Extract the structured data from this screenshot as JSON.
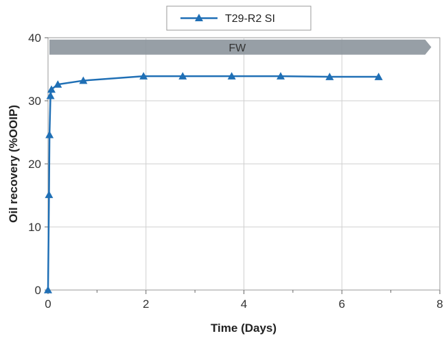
{
  "chart_data": {
    "type": "line",
    "xlabel": "Time (Days)",
    "ylabel": "Oil recovery (%OOIP)",
    "xlim": [
      0,
      8
    ],
    "ylim": [
      0,
      40
    ],
    "xticks": [
      "0",
      "2",
      "4",
      "6",
      "8"
    ],
    "yticks": [
      "0",
      "10",
      "20",
      "30",
      "40"
    ],
    "grid": true,
    "legend_position": "top-center",
    "series": [
      {
        "name": "T29-R2 SI",
        "color": "#1f6fb5",
        "marker": "triangle",
        "x": [
          0,
          0.02,
          0.03,
          0.05,
          0.07,
          0.2,
          0.72,
          1.95,
          2.75,
          3.75,
          4.75,
          5.75,
          6.75
        ],
        "y": [
          0,
          15.1,
          24.6,
          30.8,
          31.8,
          32.6,
          33.2,
          33.9,
          33.9,
          33.9,
          33.9,
          33.8,
          33.8
        ]
      }
    ],
    "annotations": [
      {
        "text": "FW",
        "kind": "arrow-band",
        "y": 38.5,
        "x_start": 0,
        "x_end": 7.7,
        "color": "#8c959c"
      }
    ]
  }
}
